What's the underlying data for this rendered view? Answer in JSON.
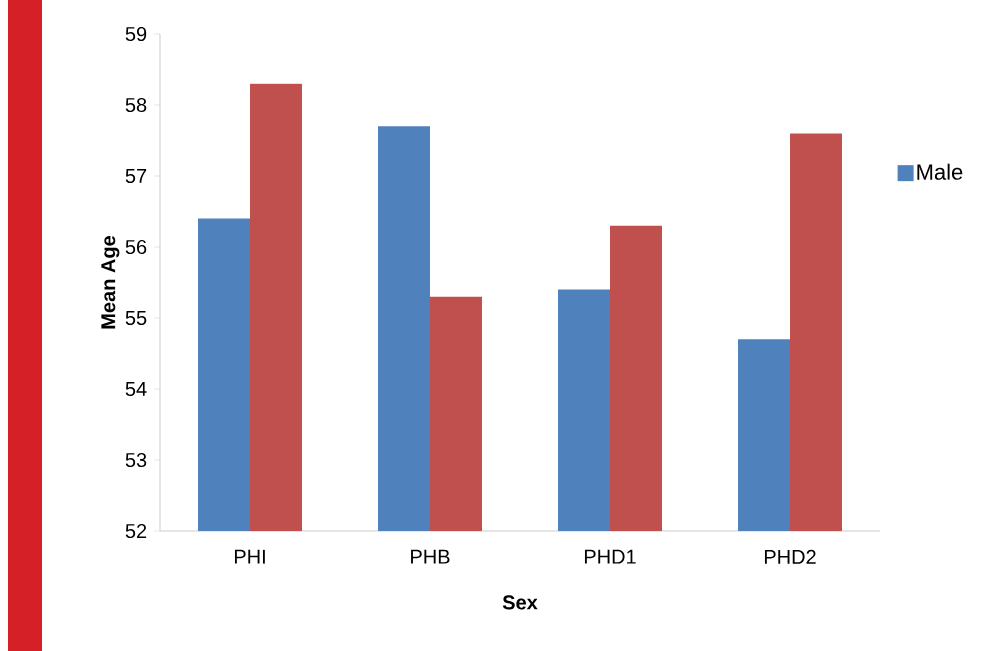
{
  "chart_data": {
    "type": "bar",
    "xlabel": "Sex",
    "ylabel": "Mean Age",
    "categories": [
      "PHI",
      "PHB",
      "PHD1",
      "PHD2"
    ],
    "series": [
      {
        "name": "Male",
        "color": "#4f81bd",
        "values": [
          56.4,
          57.7,
          55.4,
          54.7
        ]
      },
      {
        "color": "#c0504d",
        "values": [
          58.3,
          55.3,
          56.3,
          57.6
        ]
      }
    ],
    "ylim": [
      52,
      59
    ],
    "yticks": [
      52,
      53,
      54,
      55,
      56,
      57,
      58,
      59
    ],
    "legend": "right"
  }
}
